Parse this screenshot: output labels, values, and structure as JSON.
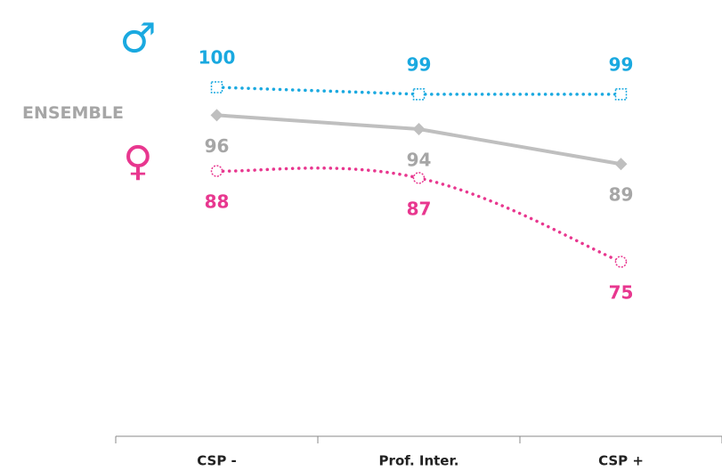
{
  "chart_data": {
    "type": "line",
    "categories": [
      "CSP -",
      "Prof. Inter.",
      "CSP +"
    ],
    "series": [
      {
        "name": "♂",
        "color": "#1aa9e0",
        "style": "dotted",
        "marker": "square",
        "label_side": "above",
        "values": [
          100,
          99,
          99
        ]
      },
      {
        "name": "ENSEMBLE",
        "color": "#bfbfbf",
        "style": "solid",
        "marker": "diamond",
        "label_side": "below",
        "values": [
          96,
          94,
          89
        ]
      },
      {
        "name": "♀",
        "color": "#e8378f",
        "style": "dotted",
        "marker": "circle",
        "label_side": "below",
        "smooth": true,
        "values": [
          88,
          87,
          75
        ]
      }
    ],
    "ylim": [
      50,
      100
    ]
  }
}
